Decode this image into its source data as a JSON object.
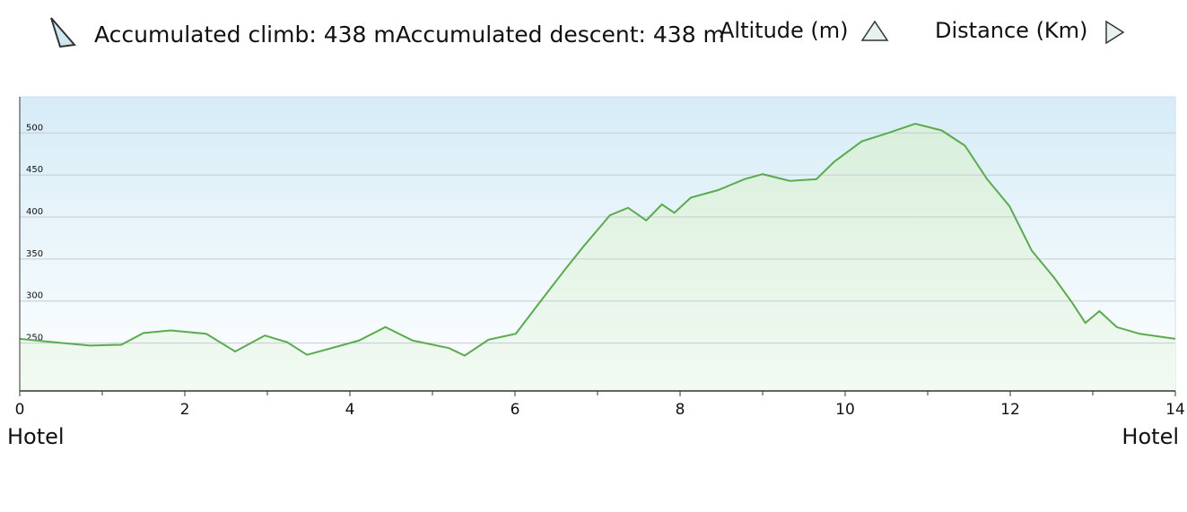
{
  "chart_data": {
    "type": "area",
    "stats": [
      "Accumulated climb: 438 m",
      "Accumulated descent: 438 m"
    ],
    "ylabel": "Altitude (m)",
    "xlabel": "Distance (Km)",
    "start_label": "Hotel",
    "end_label": "Hotel",
    "x": [
      0,
      0.41,
      0.85,
      1.23,
      1.5,
      1.83,
      2.26,
      2.61,
      2.97,
      3.24,
      3.48,
      3.89,
      4.11,
      4.43,
      4.76,
      5.2,
      5.39,
      5.68,
      6.01,
      6.28,
      6.61,
      6.83,
      7.15,
      7.37,
      7.59,
      7.78,
      7.93,
      8.13,
      8.46,
      8.78,
      9.0,
      9.33,
      9.65,
      9.87,
      10.09,
      10.2,
      10.52,
      10.85,
      11.17,
      11.45,
      11.72,
      11.99,
      12.26,
      12.53,
      12.75,
      12.91,
      13.08,
      13.29,
      13.57,
      14
    ],
    "values": [
      255,
      251,
      247,
      248,
      262,
      265,
      261,
      240,
      259,
      251,
      236,
      247,
      253,
      269,
      253,
      244,
      235,
      254,
      261,
      296,
      338,
      365,
      402,
      411,
      396,
      415,
      405,
      423,
      432,
      445,
      451,
      443,
      445,
      466,
      482,
      490,
      500,
      511,
      503,
      485,
      445,
      413,
      360,
      328,
      298,
      274,
      288,
      269,
      261,
      255
    ],
    "color": "#5aab4f",
    "xlim": [
      0,
      14
    ],
    "xticks": [
      0,
      2,
      4,
      6,
      8,
      10,
      12,
      14
    ],
    "ylim": [
      193,
      543
    ],
    "yticks": [
      250,
      300,
      350,
      400,
      450,
      500
    ],
    "grid": true
  }
}
